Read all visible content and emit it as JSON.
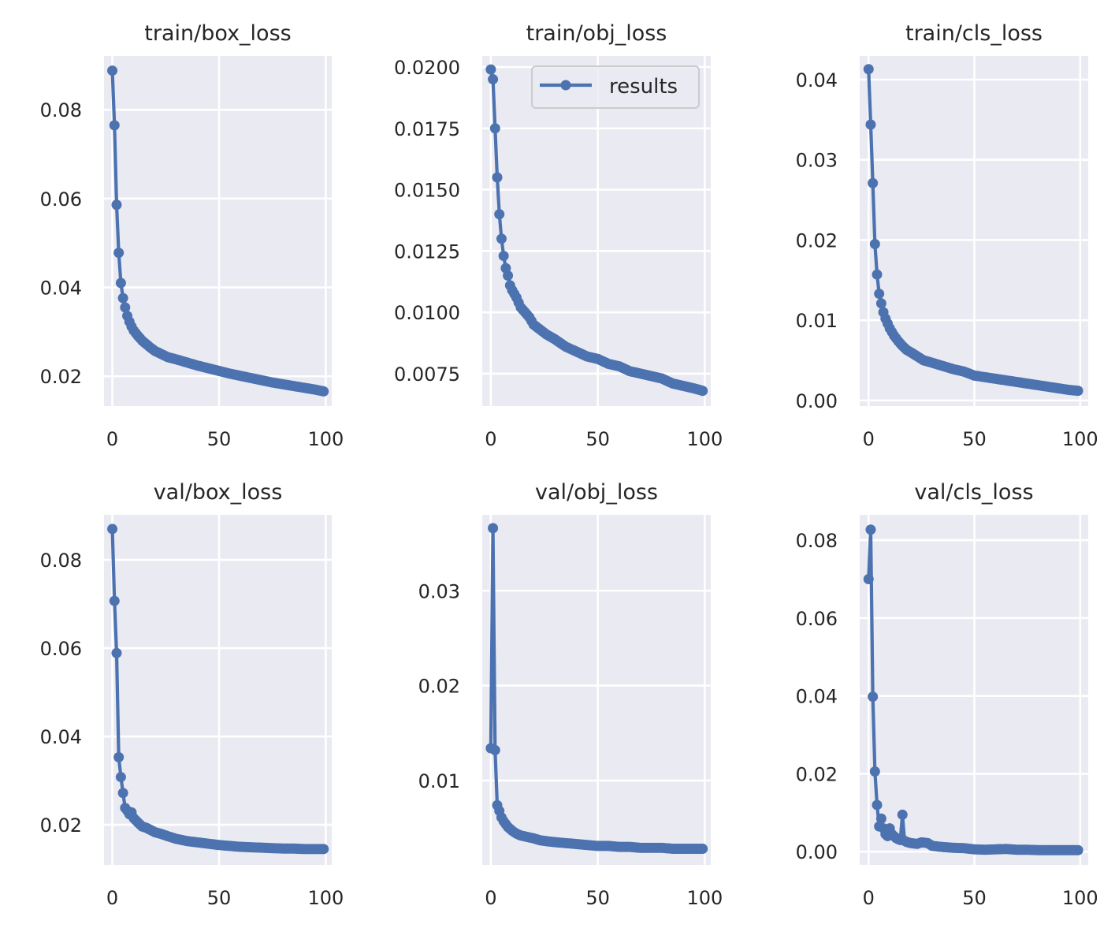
{
  "figure": {
    "background": "#ffffff",
    "axes_facecolor": "#eaeaf2",
    "grid_color": "#ffffff",
    "line_color": "#4c72b0",
    "text_color": "#262626"
  },
  "legend": {
    "label": "results",
    "location": "upper-right",
    "panel": 1
  },
  "chart_data": [
    {
      "type": "line",
      "title": "train/box_loss",
      "xlabel": "",
      "ylabel": "",
      "xlim": [
        -3.9,
        102.8
      ],
      "ylim": [
        0.0133,
        0.0921
      ],
      "xticks": [
        0,
        50,
        100
      ],
      "xtick_labels": [
        "0",
        "50",
        "100"
      ],
      "yticks": [
        0.02,
        0.04,
        0.06,
        0.08
      ],
      "ytick_labels": [
        "0.02",
        "0.04",
        "0.06",
        "0.08"
      ],
      "grid": true,
      "series": [
        {
          "name": "results",
          "key_points": [
            [
              0,
              0.0888
            ],
            [
              1,
              0.0765
            ],
            [
              2,
              0.0586
            ],
            [
              3,
              0.0478
            ],
            [
              4,
              0.041
            ],
            [
              5,
              0.0376
            ],
            [
              6,
              0.0355
            ],
            [
              7,
              0.0336
            ],
            [
              8,
              0.0323
            ],
            [
              9,
              0.0312
            ],
            [
              10,
              0.0303
            ],
            [
              12,
              0.0291
            ],
            [
              14,
              0.028
            ],
            [
              16,
              0.0272
            ],
            [
              18,
              0.0264
            ],
            [
              20,
              0.0257
            ],
            [
              23,
              0.025
            ],
            [
              26,
              0.0243
            ],
            [
              30,
              0.0238
            ],
            [
              35,
              0.0231
            ],
            [
              40,
              0.0224
            ],
            [
              45,
              0.0218
            ],
            [
              50,
              0.0212
            ],
            [
              55,
              0.0206
            ],
            [
              60,
              0.0201
            ],
            [
              65,
              0.0196
            ],
            [
              70,
              0.0191
            ],
            [
              75,
              0.0186
            ],
            [
              80,
              0.0182
            ],
            [
              85,
              0.0178
            ],
            [
              90,
              0.0174
            ],
            [
              95,
              0.017
            ],
            [
              99,
              0.0166
            ]
          ]
        }
      ]
    },
    {
      "type": "line",
      "title": "train/obj_loss",
      "xlabel": "",
      "ylabel": "",
      "xlim": [
        -4.0,
        102.8
      ],
      "ylim": [
        0.00618,
        0.02045
      ],
      "xticks": [
        0,
        50,
        100
      ],
      "xtick_labels": [
        "0",
        "50",
        "100"
      ],
      "yticks": [
        0.0075,
        0.01,
        0.0125,
        0.015,
        0.0175,
        0.02
      ],
      "ytick_labels": [
        "0.0075",
        "0.0100",
        "0.0125",
        "0.0150",
        "0.0175",
        "0.0200"
      ],
      "grid": true,
      "series": [
        {
          "name": "results",
          "key_points": [
            [
              0,
              0.0199
            ],
            [
              1,
              0.0195
            ],
            [
              2,
              0.0175
            ],
            [
              3,
              0.0155
            ],
            [
              4,
              0.014
            ],
            [
              5,
              0.013
            ],
            [
              6,
              0.0123
            ],
            [
              7,
              0.0118
            ],
            [
              8,
              0.0115
            ],
            [
              9,
              0.0111
            ],
            [
              10,
              0.0109
            ],
            [
              12,
              0.0106
            ],
            [
              14,
              0.0102
            ],
            [
              16,
              0.01
            ],
            [
              18,
              0.0098
            ],
            [
              20,
              0.0095
            ],
            [
              23,
              0.0093
            ],
            [
              26,
              0.0091
            ],
            [
              30,
              0.0089
            ],
            [
              35,
              0.0086
            ],
            [
              40,
              0.0084
            ],
            [
              45,
              0.0082
            ],
            [
              50,
              0.0081
            ],
            [
              55,
              0.0079
            ],
            [
              60,
              0.0078
            ],
            [
              65,
              0.0076
            ],
            [
              70,
              0.0075
            ],
            [
              75,
              0.0074
            ],
            [
              80,
              0.0073
            ],
            [
              85,
              0.0071
            ],
            [
              90,
              0.007
            ],
            [
              95,
              0.0069
            ],
            [
              99,
              0.0068
            ]
          ]
        }
      ]
    },
    {
      "type": "line",
      "title": "train/cls_loss",
      "xlabel": "",
      "ylabel": "",
      "xlim": [
        -4.2,
        103.8
      ],
      "ylim": [
        -0.0007,
        0.04295
      ],
      "xticks": [
        0,
        50,
        100
      ],
      "xtick_labels": [
        "0",
        "50",
        "100"
      ],
      "yticks": [
        0.0,
        0.01,
        0.02,
        0.03,
        0.04
      ],
      "ytick_labels": [
        "0.00",
        "0.01",
        "0.02",
        "0.03",
        "0.04"
      ],
      "grid": true,
      "series": [
        {
          "name": "results",
          "key_points": [
            [
              0,
              0.0413
            ],
            [
              1,
              0.0344
            ],
            [
              2,
              0.0271
            ],
            [
              3,
              0.0195
            ],
            [
              4,
              0.0157
            ],
            [
              5,
              0.0133
            ],
            [
              6,
              0.0121
            ],
            [
              7,
              0.011
            ],
            [
              8,
              0.0102
            ],
            [
              9,
              0.0096
            ],
            [
              10,
              0.009
            ],
            [
              12,
              0.0081
            ],
            [
              14,
              0.0074
            ],
            [
              16,
              0.0068
            ],
            [
              18,
              0.0063
            ],
            [
              20,
              0.006
            ],
            [
              23,
              0.0055
            ],
            [
              26,
              0.005
            ],
            [
              30,
              0.0047
            ],
            [
              35,
              0.0043
            ],
            [
              40,
              0.0039
            ],
            [
              45,
              0.0036
            ],
            [
              50,
              0.0031
            ],
            [
              55,
              0.0029
            ],
            [
              60,
              0.0027
            ],
            [
              65,
              0.0025
            ],
            [
              70,
              0.0023
            ],
            [
              75,
              0.0021
            ],
            [
              80,
              0.0019
            ],
            [
              85,
              0.0017
            ],
            [
              90,
              0.0015
            ],
            [
              95,
              0.0013
            ],
            [
              99,
              0.0012
            ]
          ]
        }
      ]
    },
    {
      "type": "line",
      "title": "val/box_loss",
      "xlabel": "",
      "ylabel": "",
      "xlim": [
        -3.9,
        102.8
      ],
      "ylim": [
        0.0109,
        0.0902
      ],
      "xticks": [
        0,
        50,
        100
      ],
      "xtick_labels": [
        "0",
        "50",
        "100"
      ],
      "yticks": [
        0.02,
        0.04,
        0.06,
        0.08
      ],
      "ytick_labels": [
        "0.02",
        "0.04",
        "0.06",
        "0.08"
      ],
      "grid": true,
      "series": [
        {
          "name": "results",
          "key_points": [
            [
              0,
              0.087
            ],
            [
              1,
              0.0707
            ],
            [
              2,
              0.0589
            ],
            [
              3,
              0.0353
            ],
            [
              4,
              0.0308
            ],
            [
              5,
              0.0272
            ],
            [
              6,
              0.0238
            ],
            [
              7,
              0.0232
            ],
            [
              8,
              0.0224
            ],
            [
              9,
              0.0228
            ],
            [
              10,
              0.0215
            ],
            [
              12,
              0.0205
            ],
            [
              14,
              0.0196
            ],
            [
              16,
              0.0193
            ],
            [
              18,
              0.0188
            ],
            [
              20,
              0.0183
            ],
            [
              23,
              0.0179
            ],
            [
              26,
              0.0174
            ],
            [
              30,
              0.0168
            ],
            [
              35,
              0.0163
            ],
            [
              40,
              0.016
            ],
            [
              45,
              0.0157
            ],
            [
              50,
              0.0154
            ],
            [
              55,
              0.0152
            ],
            [
              60,
              0.015
            ],
            [
              65,
              0.0149
            ],
            [
              70,
              0.0148
            ],
            [
              75,
              0.0147
            ],
            [
              80,
              0.0146
            ],
            [
              85,
              0.0146
            ],
            [
              90,
              0.0145
            ],
            [
              95,
              0.0145
            ],
            [
              99,
              0.0145
            ]
          ]
        }
      ]
    },
    {
      "type": "line",
      "title": "val/obj_loss",
      "xlabel": "",
      "ylabel": "",
      "xlim": [
        -4.0,
        102.8
      ],
      "ylim": [
        0.0011,
        0.038
      ],
      "xticks": [
        0,
        50,
        100
      ],
      "xtick_labels": [
        "0",
        "50",
        "100"
      ],
      "yticks": [
        0.01,
        0.02,
        0.03
      ],
      "ytick_labels": [
        "0.01",
        "0.02",
        "0.03"
      ],
      "grid": true,
      "series": [
        {
          "name": "results",
          "key_points": [
            [
              0,
              0.0134
            ],
            [
              1,
              0.0366
            ],
            [
              2,
              0.0132
            ],
            [
              3,
              0.0074
            ],
            [
              4,
              0.0068
            ],
            [
              5,
              0.0061
            ],
            [
              6,
              0.0057
            ],
            [
              7,
              0.0054
            ],
            [
              8,
              0.0051
            ],
            [
              9,
              0.0049
            ],
            [
              10,
              0.0047
            ],
            [
              12,
              0.0044
            ],
            [
              14,
              0.0042
            ],
            [
              16,
              0.0041
            ],
            [
              18,
              0.004
            ],
            [
              20,
              0.0039
            ],
            [
              23,
              0.0037
            ],
            [
              26,
              0.0036
            ],
            [
              30,
              0.0035
            ],
            [
              35,
              0.0034
            ],
            [
              40,
              0.0033
            ],
            [
              45,
              0.0032
            ],
            [
              50,
              0.0031
            ],
            [
              55,
              0.0031
            ],
            [
              60,
              0.003
            ],
            [
              65,
              0.003
            ],
            [
              70,
              0.0029
            ],
            [
              75,
              0.0029
            ],
            [
              80,
              0.0029
            ],
            [
              85,
              0.0028
            ],
            [
              90,
              0.0028
            ],
            [
              95,
              0.0028
            ],
            [
              99,
              0.0028
            ]
          ]
        }
      ]
    },
    {
      "type": "line",
      "title": "val/cls_loss",
      "xlabel": "",
      "ylabel": "",
      "xlim": [
        -4.2,
        103.8
      ],
      "ylim": [
        -0.0034,
        0.0865
      ],
      "xticks": [
        0,
        50,
        100
      ],
      "xtick_labels": [
        "0",
        "50",
        "100"
      ],
      "yticks": [
        0.0,
        0.02,
        0.04,
        0.06,
        0.08
      ],
      "ytick_labels": [
        "0.00",
        "0.02",
        "0.04",
        "0.06",
        "0.08"
      ],
      "grid": true,
      "series": [
        {
          "name": "results",
          "key_points": [
            [
              0,
              0.07
            ],
            [
              1,
              0.0827
            ],
            [
              2,
              0.0398
            ],
            [
              3,
              0.0206
            ],
            [
              4,
              0.012
            ],
            [
              5,
              0.0065
            ],
            [
              6,
              0.0085
            ],
            [
              7,
              0.006
            ],
            [
              8,
              0.0045
            ],
            [
              9,
              0.004
            ],
            [
              10,
              0.006
            ],
            [
              11,
              0.0045
            ],
            [
              12,
              0.004
            ],
            [
              13,
              0.0035
            ],
            [
              14,
              0.0032
            ],
            [
              15,
              0.003
            ],
            [
              16,
              0.0095
            ],
            [
              17,
              0.0028
            ],
            [
              18,
              0.0025
            ],
            [
              20,
              0.0022
            ],
            [
              23,
              0.002
            ],
            [
              25,
              0.0024
            ],
            [
              28,
              0.0022
            ],
            [
              30,
              0.0015
            ],
            [
              35,
              0.0012
            ],
            [
              40,
              0.001
            ],
            [
              45,
              0.0009
            ],
            [
              50,
              0.0006
            ],
            [
              55,
              0.0005
            ],
            [
              60,
              0.0006
            ],
            [
              65,
              0.0007
            ],
            [
              70,
              0.0005
            ],
            [
              75,
              0.0005
            ],
            [
              80,
              0.0004
            ],
            [
              85,
              0.0004
            ],
            [
              90,
              0.0004
            ],
            [
              95,
              0.0004
            ],
            [
              99,
              0.0004
            ]
          ]
        }
      ]
    }
  ]
}
